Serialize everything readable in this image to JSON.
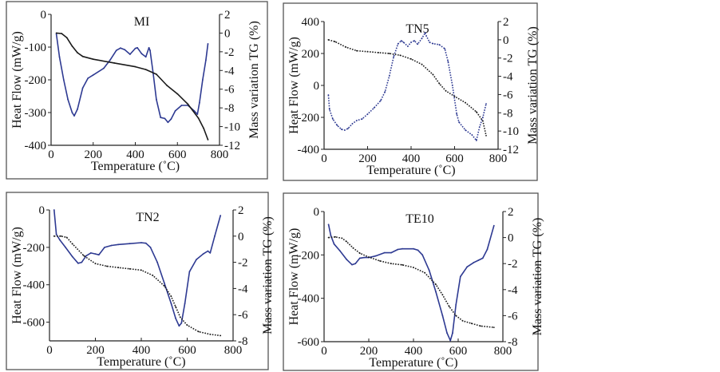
{
  "figure": {
    "colors": {
      "dsc": "#2e3a92",
      "tg": "#1a1a1a",
      "frame": "#555555"
    }
  },
  "chart_data": [
    {
      "type": "line",
      "title": "MI",
      "xlabel": "Temperature (˚C)",
      "ylabel": "Heat Flow (mW/g)",
      "y2label": "Mass variation TG (%)",
      "xlim": [
        0,
        800
      ],
      "ylim": [
        -400,
        0
      ],
      "y2lim": [
        -12,
        2
      ],
      "xticks": [
        0,
        200,
        400,
        600,
        800
      ],
      "yticks": [
        0,
        -100,
        -200,
        -300,
        -400
      ],
      "y2ticks": [
        2,
        0,
        -2,
        -4,
        -6,
        -8,
        -10,
        -12
      ],
      "grid": false,
      "series": [
        {
          "name": "Heat Flow (DSC)",
          "axis": "left",
          "style": "solid",
          "x": [
            25,
            40,
            60,
            80,
            100,
            110,
            125,
            150,
            175,
            200,
            250,
            280,
            310,
            330,
            350,
            375,
            400,
            410,
            430,
            450,
            465,
            470,
            485,
            500,
            520,
            540,
            555,
            570,
            590,
            620,
            650,
            680,
            695,
            705,
            720,
            735,
            745
          ],
          "y": [
            -60,
            -130,
            -200,
            -260,
            -300,
            -310,
            -290,
            -225,
            -195,
            -185,
            -165,
            -140,
            -110,
            -103,
            -108,
            -122,
            -104,
            -102,
            -120,
            -130,
            -102,
            -110,
            -180,
            -260,
            -315,
            -318,
            -330,
            -320,
            -295,
            -278,
            -278,
            -295,
            -305,
            -270,
            -200,
            -140,
            -90
          ]
        },
        {
          "name": "Mass variation TG",
          "axis": "right",
          "style": "solid",
          "x": [
            25,
            50,
            75,
            100,
            125,
            150,
            200,
            300,
            400,
            450,
            500,
            550,
            600,
            650,
            700,
            725,
            745
          ],
          "y": [
            0,
            -0.05,
            -0.5,
            -1.4,
            -2.1,
            -2.5,
            -2.8,
            -3.2,
            -3.6,
            -3.9,
            -4.4,
            -5.6,
            -6.5,
            -7.6,
            -9.1,
            -10.2,
            -11.4
          ]
        }
      ]
    },
    {
      "type": "line",
      "title": "TN5",
      "xlabel": "Temperature (˚C)",
      "ylabel": "Heat Flow (mW/g)",
      "y2label": "Mass variation TG (%)",
      "xlim": [
        0,
        800
      ],
      "ylim": [
        -400,
        400
      ],
      "y2lim": [
        -12,
        2
      ],
      "xticks": [
        0,
        200,
        400,
        600,
        800
      ],
      "yticks": [
        400,
        200,
        0,
        -200,
        -400
      ],
      "y2ticks": [
        2,
        0,
        -2,
        -4,
        -6,
        -8,
        -10,
        -12
      ],
      "grid": false,
      "series": [
        {
          "name": "Heat Flow (DSC)",
          "axis": "left",
          "style": "dotted",
          "x": [
            20,
            25,
            40,
            60,
            80,
            95,
            110,
            130,
            150,
            175,
            200,
            230,
            260,
            280,
            300,
            320,
            340,
            355,
            365,
            385,
            400,
            415,
            430,
            450,
            465,
            470,
            485,
            500,
            530,
            555,
            570,
            590,
            610,
            620,
            650,
            680,
            700,
            715,
            730,
            745
          ],
          "y": [
            -60,
            -150,
            -210,
            -250,
            -275,
            -280,
            -270,
            -240,
            -220,
            -210,
            -180,
            -140,
            -95,
            -40,
            60,
            180,
            260,
            280,
            270,
            245,
            270,
            280,
            258,
            295,
            330,
            310,
            270,
            262,
            255,
            230,
            150,
            0,
            -180,
            -230,
            -280,
            -310,
            -345,
            -260,
            -200,
            -115
          ]
        },
        {
          "name": "Mass variation TG",
          "axis": "right",
          "style": "dotted",
          "x": [
            20,
            50,
            100,
            150,
            200,
            250,
            300,
            350,
            400,
            450,
            500,
            530,
            560,
            600,
            650,
            700,
            730,
            745
          ],
          "y": [
            0,
            -0.2,
            -0.8,
            -1.2,
            -1.3,
            -1.4,
            -1.5,
            -1.7,
            -2.1,
            -2.7,
            -3.8,
            -4.8,
            -5.6,
            -6.2,
            -6.9,
            -7.9,
            -8.9,
            -10.5
          ]
        }
      ]
    },
    {
      "type": "line",
      "title": "TN2",
      "xlabel": "Temperature (˚C)",
      "ylabel": "Heat Flow (mW/g)",
      "y2label": "Mass variation TG (%)",
      "xlim": [
        0,
        800
      ],
      "ylim": [
        -700,
        0
      ],
      "y2lim": [
        -8,
        2
      ],
      "xticks": [
        0,
        200,
        400,
        600,
        800
      ],
      "yticks": [
        0,
        -200,
        -400,
        -600
      ],
      "y2ticks": [
        2,
        0,
        -2,
        -4,
        -6,
        -8
      ],
      "grid": false,
      "series": [
        {
          "name": "Heat Flow (DSC)",
          "axis": "left",
          "style": "mixed",
          "x": [
            20,
            30,
            45,
            70,
            100,
            125,
            140,
            160,
            180,
            200,
            215,
            240,
            270,
            300,
            350,
            400,
            420,
            440,
            470,
            500,
            530,
            550,
            565,
            575,
            590,
            610,
            640,
            670,
            690,
            700,
            720,
            745
          ],
          "y": [
            0,
            -130,
            -160,
            -200,
            -250,
            -285,
            -280,
            -245,
            -230,
            -235,
            -240,
            -200,
            -190,
            -185,
            -180,
            -175,
            -178,
            -200,
            -280,
            -390,
            -500,
            -580,
            -620,
            -605,
            -500,
            -330,
            -265,
            -235,
            -220,
            -230,
            -140,
            -30
          ]
        },
        {
          "name": "Mass variation TG",
          "axis": "right",
          "style": "dotted",
          "x": [
            20,
            50,
            75,
            100,
            150,
            200,
            250,
            300,
            350,
            400,
            450,
            500,
            530,
            550,
            570,
            600,
            650,
            700,
            745
          ],
          "y": [
            0,
            0,
            -0.1,
            -0.6,
            -1.5,
            -2.1,
            -2.3,
            -2.4,
            -2.5,
            -2.6,
            -3.0,
            -3.8,
            -4.6,
            -5.4,
            -6.2,
            -6.8,
            -7.3,
            -7.5,
            -7.6
          ]
        }
      ]
    },
    {
      "type": "line",
      "title": "TE10",
      "xlabel": "Temperature (˚C)",
      "ylabel": "Heat Flow (mW/g)",
      "y2label": "Mass variation TG (%)",
      "xlim": [
        0,
        800
      ],
      "ylim": [
        -600,
        0
      ],
      "y2lim": [
        -8,
        2
      ],
      "xticks": [
        0,
        200,
        400,
        600,
        800
      ],
      "yticks": [
        0,
        -200,
        -400,
        -600
      ],
      "y2ticks": [
        2,
        0,
        -2,
        -4,
        -6,
        -8
      ],
      "grid": false,
      "series": [
        {
          "name": "Heat Flow (DSC)",
          "axis": "left",
          "style": "mixed",
          "x": [
            20,
            30,
            45,
            70,
            100,
            125,
            140,
            160,
            180,
            200,
            230,
            270,
            300,
            330,
            350,
            400,
            420,
            440,
            470,
            500,
            530,
            550,
            565,
            575,
            590,
            610,
            640,
            670,
            690,
            710,
            730,
            760
          ],
          "y": [
            -60,
            -110,
            -150,
            -180,
            -220,
            -245,
            -240,
            -215,
            -212,
            -212,
            -205,
            -190,
            -190,
            -175,
            -172,
            -172,
            -178,
            -200,
            -270,
            -370,
            -480,
            -560,
            -595,
            -560,
            -430,
            -300,
            -255,
            -235,
            -225,
            -215,
            -175,
            -65
          ]
        },
        {
          "name": "Mass variation TG",
          "axis": "right",
          "style": "dotted",
          "x": [
            20,
            50,
            80,
            100,
            130,
            160,
            200,
            250,
            300,
            350,
            400,
            450,
            500,
            530,
            560,
            590,
            620,
            660,
            700,
            760
          ],
          "y": [
            0,
            0.05,
            -0.05,
            -0.3,
            -0.8,
            -1.2,
            -1.5,
            -1.8,
            -2.0,
            -2.1,
            -2.3,
            -2.7,
            -3.6,
            -4.4,
            -5.3,
            -6.0,
            -6.4,
            -6.6,
            -6.8,
            -6.9
          ]
        }
      ]
    }
  ]
}
